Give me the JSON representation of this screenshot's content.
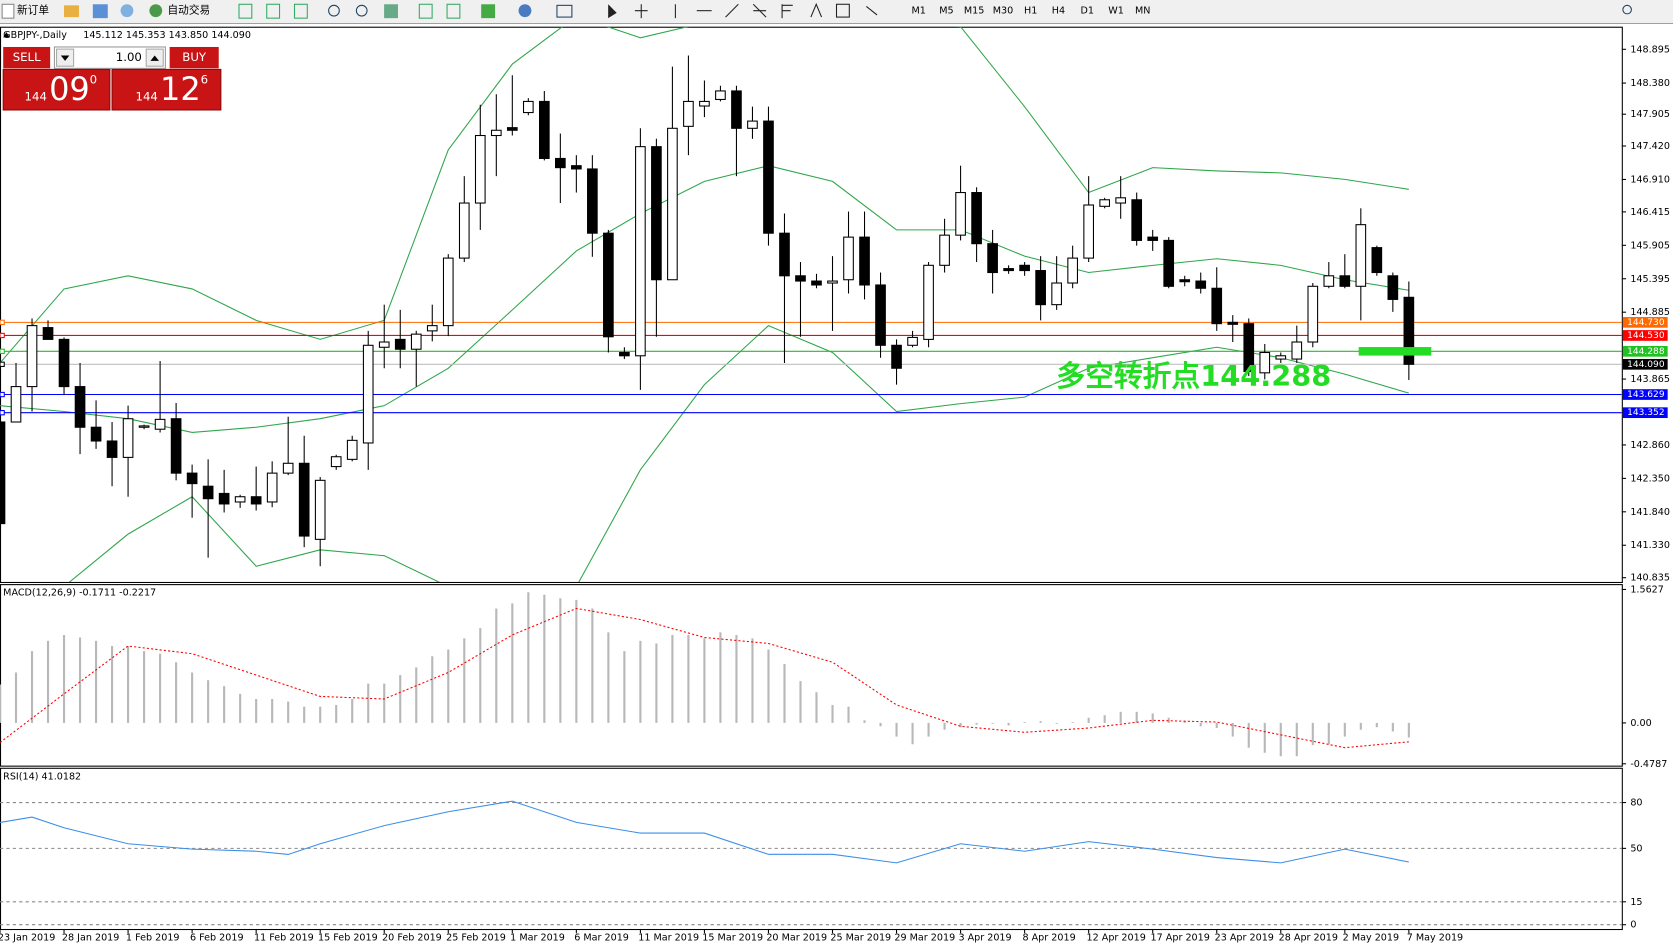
{
  "toolbar": {
    "new_order": "新订单",
    "auto_trading": "自动交易",
    "timeframes": [
      "M1",
      "M5",
      "M15",
      "M30",
      "H1",
      "H4",
      "D1",
      "W1",
      "MN"
    ]
  },
  "trade_panel": {
    "sell": "SELL",
    "lots": "1.00",
    "buy": "BUY",
    "sell_price": {
      "big": "144",
      "main": "09",
      "small": "0"
    },
    "buy_price": {
      "big": "144",
      "main": "12",
      "small": "6"
    }
  },
  "chart_data": [
    {
      "type": "candlestick",
      "title": "GBPJPY-,Daily",
      "header": "145.112 145.353 143.850 144.090",
      "categories": [
        "23 Jan 2019",
        null,
        null,
        null,
        "28 Jan 2019",
        null,
        null,
        null,
        "1 Feb 2019",
        null,
        null,
        null,
        "6 Feb 2019",
        null,
        null,
        null,
        "11 Feb 2019",
        null,
        null,
        null,
        "15 Feb 2019",
        null,
        null,
        null,
        "20 Feb 2019",
        null,
        null,
        null,
        "25 Feb 2019",
        null,
        null,
        null,
        "1 Mar 2019",
        null,
        null,
        null,
        "6 Mar 2019",
        null,
        null,
        null,
        "11 Mar 2019",
        null,
        null,
        null,
        "15 Mar 2019",
        null,
        null,
        null,
        "20 Mar 2019",
        null,
        null,
        null,
        "25 Mar 2019",
        null,
        null,
        null,
        "29 Mar 2019",
        null,
        null,
        null,
        "3 Apr 2019",
        null,
        null,
        null,
        "8 Apr 2019",
        null,
        null,
        null,
        "12 Apr 2019",
        null,
        null,
        null,
        "17 Apr 2019",
        null,
        null,
        null,
        "23 Apr 2019",
        null,
        null,
        null,
        "28 Apr 2019",
        null,
        null,
        null,
        "2 May 2019",
        null,
        null,
        null,
        "7 May 2019"
      ],
      "open": [
        143.21,
        143.21,
        143.75,
        144.65,
        144.47,
        143.75,
        143.13,
        142.92,
        142.67,
        143.13,
        143.1,
        143.26,
        142.43,
        142.23,
        142.12,
        141.99,
        142.07,
        141.99,
        142.43,
        142.58,
        141.42,
        142.53,
        142.64,
        142.89,
        144.35,
        144.47,
        144.32,
        144.6,
        144.68,
        145.71,
        146.55,
        147.58,
        147.7,
        147.93,
        148.1,
        147.23,
        147.12,
        147.07,
        146.09,
        144.27,
        144.22,
        147.41,
        145.38,
        147.72,
        148.03,
        148.13,
        148.26,
        147.69,
        147.8,
        146.09,
        145.44,
        145.36,
        145.33,
        145.38,
        146.03,
        145.3,
        144.38,
        144.38,
        144.47,
        145.6,
        146.06,
        146.71,
        145.93,
        145.55,
        145.6,
        145.52,
        145.0,
        145.33,
        145.71,
        146.5,
        146.55,
        146.6,
        146.03,
        145.98,
        145.38,
        145.36,
        145.25,
        144.73,
        144.71,
        143.96,
        144.17,
        144.17,
        144.43,
        145.28,
        145.44,
        145.28,
        145.87,
        145.44,
        145.112
      ],
      "high": [
        143.3,
        144.11,
        144.79,
        144.76,
        144.5,
        144.11,
        143.54,
        143.21,
        143.46,
        143.17,
        144.14,
        143.5,
        142.56,
        142.64,
        142.48,
        142.1,
        142.53,
        142.61,
        143.29,
        143.0,
        142.37,
        142.71,
        143.0,
        144.6,
        145.0,
        144.92,
        144.6,
        145.0,
        145.77,
        146.96,
        148.05,
        148.21,
        148.5,
        148.15,
        148.26,
        147.61,
        147.28,
        147.28,
        146.14,
        144.35,
        147.69,
        147.53,
        148.63,
        148.8,
        148.42,
        148.34,
        148.34,
        148.02,
        148.02,
        146.39,
        145.65,
        145.47,
        145.74,
        146.42,
        146.42,
        145.49,
        144.47,
        144.6,
        145.65,
        146.31,
        147.12,
        146.79,
        146.14,
        145.6,
        145.65,
        145.74,
        145.74,
        145.9,
        146.96,
        146.63,
        146.96,
        146.71,
        146.14,
        146.03,
        145.44,
        145.49,
        145.57,
        144.84,
        144.79,
        144.4,
        144.27,
        144.68,
        145.33,
        145.65,
        145.77,
        146.47,
        145.9,
        145.49,
        145.353
      ],
      "low": [
        141.66,
        143.21,
        143.37,
        144.47,
        143.62,
        142.72,
        142.8,
        142.23,
        142.07,
        143.1,
        143.05,
        142.32,
        141.75,
        141.14,
        141.83,
        141.9,
        141.86,
        141.91,
        142.4,
        141.3,
        141.01,
        142.48,
        142.61,
        142.48,
        144.03,
        144.03,
        143.75,
        144.44,
        144.52,
        145.65,
        146.14,
        146.96,
        147.58,
        147.89,
        147.2,
        146.55,
        146.71,
        145.73,
        144.27,
        144.17,
        143.7,
        144.51,
        145.38,
        147.28,
        147.86,
        148.1,
        146.96,
        147.53,
        145.9,
        144.11,
        144.51,
        145.25,
        144.6,
        145.17,
        145.08,
        144.19,
        143.78,
        144.35,
        144.35,
        145.49,
        145.98,
        145.65,
        145.17,
        145.47,
        145.44,
        144.76,
        144.92,
        145.25,
        145.65,
        146.47,
        146.31,
        145.9,
        145.82,
        145.25,
        145.28,
        145.17,
        144.6,
        144.43,
        143.91,
        143.86,
        144.11,
        144.11,
        144.35,
        145.25,
        145.25,
        144.76,
        145.44,
        144.89,
        143.85
      ],
      "close": [
        141.66,
        143.75,
        144.68,
        144.47,
        143.75,
        143.13,
        142.92,
        142.67,
        143.26,
        143.15,
        143.25,
        142.43,
        142.27,
        142.04,
        141.96,
        142.07,
        141.96,
        142.43,
        142.58,
        141.47,
        142.32,
        142.68,
        142.93,
        144.38,
        144.43,
        144.32,
        144.55,
        144.68,
        145.71,
        146.55,
        147.58,
        147.66,
        147.66,
        148.1,
        147.23,
        147.09,
        147.07,
        146.09,
        144.51,
        144.22,
        147.41,
        145.38,
        147.69,
        148.1,
        148.1,
        148.26,
        147.69,
        147.8,
        146.09,
        145.44,
        145.36,
        145.3,
        145.36,
        146.03,
        145.3,
        144.38,
        144.03,
        144.5,
        145.6,
        146.06,
        146.71,
        145.93,
        145.49,
        145.52,
        145.52,
        145.0,
        145.33,
        145.71,
        146.52,
        146.6,
        146.63,
        145.98,
        145.98,
        145.28,
        145.35,
        145.25,
        144.71,
        144.7,
        143.98,
        144.27,
        144.22,
        144.43,
        145.28,
        145.44,
        145.28,
        146.22,
        145.49,
        145.08,
        144.09
      ],
      "up_color": "#ffffff",
      "down_color": "#000000",
      "bands": {
        "color": "#2ea64a",
        "x": [
          0,
          4,
          8,
          12,
          16,
          20,
          24,
          28,
          32,
          36,
          40,
          44,
          48,
          52,
          56,
          60,
          64,
          68,
          72,
          76,
          80,
          84,
          88
        ],
        "upper": [
          144.11,
          145.24,
          145.44,
          145.24,
          144.76,
          144.47,
          144.76,
          147.36,
          148.67,
          149.4,
          149.07,
          149.3,
          149.32,
          149.32,
          149.32,
          149.24,
          148.02,
          146.71,
          147.09,
          147.04,
          147.01,
          146.91,
          146.76
        ],
        "middle": [
          143.46,
          143.37,
          143.26,
          143.05,
          143.13,
          143.26,
          143.46,
          144.03,
          144.92,
          145.82,
          146.39,
          146.88,
          147.12,
          146.88,
          146.14,
          146.14,
          145.74,
          145.49,
          145.6,
          145.7,
          145.6,
          145.38,
          145.22
        ],
        "lower": [
          140.5,
          140.7,
          141.5,
          142.07,
          141.01,
          141.26,
          141.17,
          140.7,
          140.36,
          140.7,
          142.48,
          143.78,
          144.68,
          144.27,
          143.37,
          143.49,
          143.59,
          144.03,
          144.19,
          144.35,
          144.19,
          143.94,
          143.65
        ]
      },
      "levels": [
        {
          "value": 144.73,
          "label": "144.730",
          "color": "#ff6a00",
          "line_color": "#ff6a00"
        },
        {
          "value": 144.53,
          "label": "144.530",
          "color": "#ff0000",
          "line_color": "#ff0000"
        },
        {
          "value": 144.288,
          "label": "144.288",
          "color": "#22c022",
          "line_color": "#22c022"
        },
        {
          "value": 144.09,
          "label": "144.090",
          "color": "#000000",
          "line_color": "#c0c0c0"
        },
        {
          "value": 143.629,
          "label": "143.629",
          "color": "#0000ff",
          "line_color": "#0000ff"
        },
        {
          "value": 143.352,
          "label": "143.352",
          "color": "#0000ff",
          "line_color": "#0000ff"
        }
      ],
      "annotation": "多空转折点144.288",
      "annotation_color": "#22dd22",
      "xlim": [
        0,
        101.3
      ],
      "ylim": [
        140.77,
        149.24
      ],
      "yticks": [
        148.895,
        {
          "value": 148.38,
          "label": "148.380"
        },
        147.905,
        {
          "value": 147.42,
          "label": "147.420"
        },
        {
          "value": 146.91,
          "label": "146.910"
        },
        146.415,
        145.905,
        145.395,
        144.885,
        143.865,
        {
          "value": 142.86,
          "label": "142.860"
        },
        {
          "value": 142.35,
          "label": "142.350"
        },
        {
          "value": 141.84,
          "label": "141.840"
        },
        {
          "value": 141.33,
          "label": "141.330"
        },
        140.835
      ]
    },
    {
      "type": "macd",
      "title": "MACD(12,26,9) -0.1711 -0.2217",
      "bar_color": "#b8b8b8",
      "values": [
        0.45,
        0.59,
        0.84,
        0.96,
        1.03,
        1.0,
        0.96,
        0.9,
        0.9,
        0.84,
        0.81,
        0.71,
        0.59,
        0.5,
        0.43,
        0.34,
        0.28,
        0.28,
        0.25,
        0.19,
        0.19,
        0.21,
        0.28,
        0.46,
        0.46,
        0.56,
        0.65,
        0.78,
        0.86,
        0.99,
        1.11,
        1.34,
        1.4,
        1.53,
        1.5,
        1.46,
        1.44,
        1.34,
        1.06,
        0.84,
        0.96,
        0.93,
        1.03,
        1.03,
        0.99,
        1.06,
        1.03,
        0.99,
        0.86,
        0.69,
        0.49,
        0.36,
        0.21,
        0.19,
        0.03,
        -0.04,
        -0.16,
        -0.25,
        -0.16,
        -0.08,
        -0.05,
        -0.02,
        -0.01,
        -0.03,
        0.01,
        0.02,
        -0.01,
        0.01,
        0.06,
        0.09,
        0.13,
        0.13,
        0.11,
        0.06,
        0.02,
        -0.04,
        -0.06,
        -0.16,
        -0.29,
        -0.35,
        -0.39,
        -0.39,
        -0.26,
        -0.25,
        -0.16,
        -0.08,
        -0.05,
        -0.1,
        -0.1711
      ],
      "signal": {
        "color": "#ff0000",
        "x": [
          0,
          4,
          8,
          12,
          16,
          20,
          24,
          28,
          32,
          36,
          40,
          44,
          48,
          52,
          56,
          60,
          64,
          68,
          72,
          76,
          80,
          84,
          88
        ],
        "values": [
          -0.23,
          0.34,
          0.9,
          0.81,
          0.56,
          0.31,
          0.28,
          0.59,
          1.03,
          1.34,
          1.21,
          1.0,
          0.93,
          0.71,
          0.21,
          -0.04,
          -0.11,
          -0.06,
          0.03,
          0.01,
          -0.14,
          -0.29,
          -0.2217
        ]
      },
      "xlim": [
        0,
        101.3
      ],
      "ylim": [
        -0.5,
        1.613
      ],
      "yticks": [
        1.5627,
        {
          "value": 0,
          "label": "0.00"
        },
        -0.4787
      ]
    },
    {
      "type": "line",
      "title": "RSI(14) 41.0182",
      "color": "#3b8ee8",
      "grid_dashed": true,
      "x": [
        0,
        2,
        4,
        8,
        12,
        16,
        18,
        20,
        24,
        28,
        32,
        36,
        40,
        44,
        48,
        52,
        56,
        60,
        64,
        68,
        72,
        76,
        80,
        84,
        88
      ],
      "values": [
        67.0,
        70.5,
        63.5,
        53.0,
        49.5,
        48.1,
        46.0,
        53.0,
        64.9,
        74.0,
        80.9,
        67.0,
        60.0,
        60.0,
        46.1,
        46.1,
        40.5,
        53.0,
        48.1,
        54.4,
        49.5,
        44.0,
        40.5,
        49.5,
        41.0182
      ],
      "xlim": [
        0,
        101.3
      ],
      "ylim": [
        0,
        100
      ],
      "yticks": [
        80,
        50,
        15,
        0
      ]
    }
  ]
}
